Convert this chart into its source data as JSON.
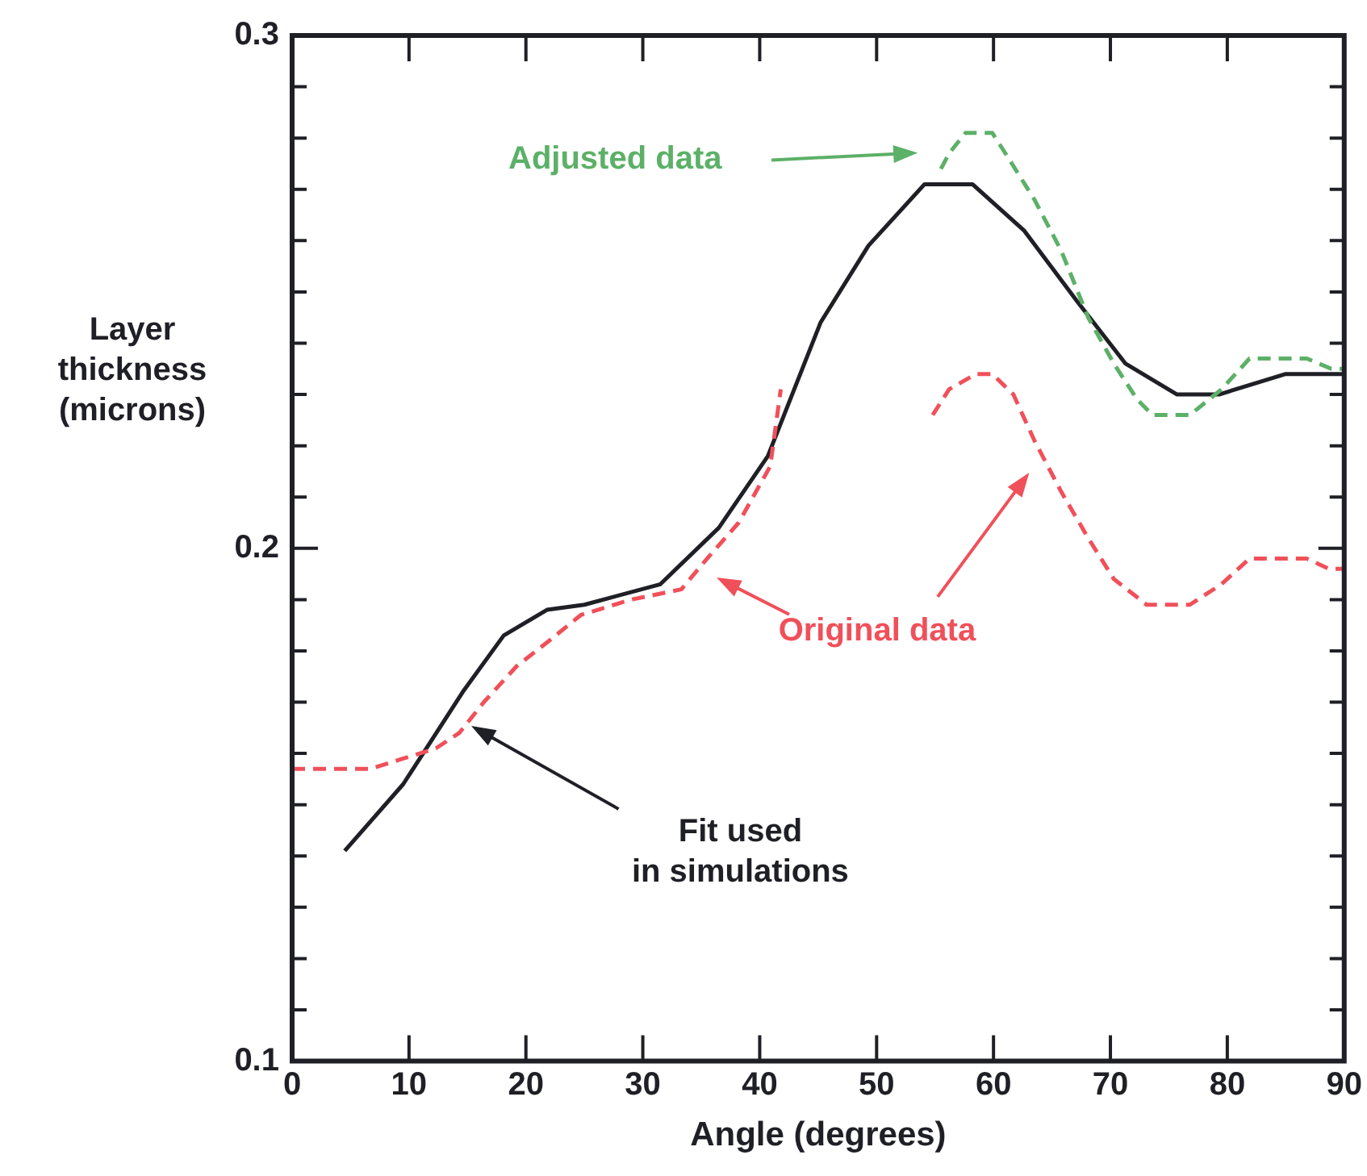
{
  "chart_data": {
    "type": "line",
    "xlabel": "Angle (degrees)",
    "ylabel": "Layer thickness (microns)",
    "xlim": [
      0,
      90
    ],
    "xticks": [
      0,
      10,
      20,
      30,
      40,
      50,
      60,
      70,
      80,
      90
    ],
    "ylim": [
      0.1,
      0.3
    ],
    "yticks": [
      0.1,
      {
        "value": 0.11,
        "label": null
      },
      {
        "value": 0.12,
        "label": null
      },
      {
        "value": 0.13,
        "label": null
      },
      {
        "value": 0.14,
        "label": null
      },
      {
        "value": 0.15,
        "label": null
      },
      {
        "value": 0.16,
        "label": null
      },
      {
        "value": 0.17,
        "label": null
      },
      {
        "value": 0.18,
        "label": null
      },
      {
        "value": 0.19,
        "label": null
      },
      0.2,
      {
        "value": 0.21,
        "label": null
      },
      {
        "value": 0.22,
        "label": null
      },
      {
        "value": 0.23,
        "label": null
      },
      {
        "value": 0.24,
        "label": null
      },
      {
        "value": 0.25,
        "label": null
      },
      {
        "value": 0.26,
        "label": null
      },
      {
        "value": 0.27,
        "label": null
      },
      {
        "value": 0.28,
        "label": null
      },
      {
        "value": 0.29,
        "label": null
      },
      0.3
    ],
    "grid": false,
    "legend": false,
    "marker": "none",
    "series": [
      {
        "color": "#f0505a",
        "line_style": "dashed",
        "x": [
          0,
          6.7,
          9.5,
          12.3,
          14.3,
          16.4,
          19.2,
          22,
          24.7,
          29,
          33.3,
          35.5,
          38.2,
          40.9,
          41.8,
          48,
          54.8,
          56.2,
          58.5,
          59.9,
          61.7,
          63.5,
          65.8,
          68.1,
          70.3,
          73.1,
          76.8,
          79.5,
          81.9,
          86.8,
          88.7,
          90
        ],
        "values": [
          0.157,
          0.157,
          0.159,
          0.161,
          0.164,
          0.17,
          0.177,
          0.182,
          0.187,
          0.19,
          0.192,
          0.198,
          0.205,
          0.216,
          0.231,
          null,
          0.226,
          0.231,
          0.234,
          0.234,
          0.23,
          0.221,
          0.211,
          0.202,
          0.194,
          0.189,
          0.189,
          0.193,
          0.198,
          0.198,
          0.196,
          0.196
        ]
      },
      {
        "color": "#5cb067",
        "line_style": "dashed",
        "x": [
          55.5,
          56.2,
          57.6,
          59.9,
          61.3,
          63.5,
          65.8,
          68.1,
          70.3,
          72.3,
          73.6,
          76.8,
          79.5,
          81.9,
          86.8,
          88.9,
          90
        ],
        "values": [
          0.274,
          0.277,
          0.281,
          0.281,
          0.276,
          0.268,
          0.258,
          0.245,
          0.236,
          0.229,
          0.226,
          0.226,
          0.231,
          0.237,
          0.237,
          0.235,
          0.235
        ]
      },
      {
        "color": "#1f1f26",
        "line_style": "solid",
        "x": [
          4.5,
          9.5,
          14.6,
          18.1,
          21.8,
          25,
          31.5,
          36.5,
          40.7,
          45.2,
          49.3,
          54.1,
          58.2,
          62.6,
          67.2,
          71.3,
          75.7,
          79.3,
          85,
          89.1,
          90
        ],
        "values": [
          0.141,
          0.154,
          0.172,
          0.183,
          0.188,
          0.189,
          0.193,
          0.204,
          0.218,
          0.244,
          0.259,
          0.271,
          0.271,
          0.262,
          0.248,
          0.236,
          0.23,
          0.23,
          0.234,
          0.234,
          0.234
        ]
      }
    ],
    "annotations": [
      "Adjusted data",
      "Original data",
      "Fit used in simulations"
    ]
  }
}
